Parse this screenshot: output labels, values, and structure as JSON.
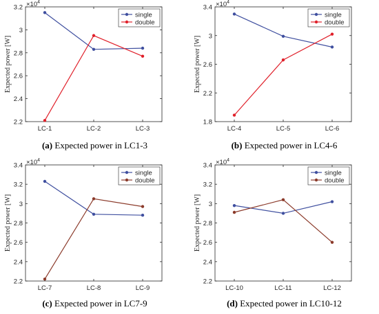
{
  "chart_data": [
    {
      "type": "line",
      "caption_letter": "(a)",
      "caption_text": "Expected power in LC1-3",
      "ylabel": "Expected power [W]",
      "exponent_base": "×10",
      "exponent_power": "4",
      "categories": [
        "LC-1",
        "LC-2",
        "LC-3"
      ],
      "ylim": [
        2.2,
        3.2
      ],
      "yticks": [
        "2.2",
        "2.4",
        "2.6",
        "2.8",
        "3",
        "3.2"
      ],
      "yticks_values": [
        2.2,
        2.4,
        2.6,
        2.8,
        3.0,
        3.2
      ],
      "legend_position": "top-right",
      "series": [
        {
          "name": "single",
          "color": "#3f4f9f",
          "values": [
            3.15,
            2.83,
            2.84
          ]
        },
        {
          "name": "double",
          "color": "#e0202a",
          "values": [
            2.21,
            2.95,
            2.77
          ]
        }
      ]
    },
    {
      "type": "line",
      "caption_letter": "(b)",
      "caption_text": "Expected power in LC4-6",
      "ylabel": "Expected power [W]",
      "exponent_base": "×10",
      "exponent_power": "4",
      "categories": [
        "LC-4",
        "LC-5",
        "LC-6"
      ],
      "ylim": [
        1.8,
        3.4
      ],
      "yticks": [
        "1.8",
        "2.2",
        "2.6",
        "3",
        "3.4"
      ],
      "yticks_values": [
        1.8,
        2.2,
        2.6,
        3.0,
        3.4
      ],
      "legend_position": "top-right",
      "series": [
        {
          "name": "single",
          "color": "#3f4f9f",
          "values": [
            3.3,
            2.99,
            2.84
          ]
        },
        {
          "name": "double",
          "color": "#e0202a",
          "values": [
            1.89,
            2.66,
            3.02
          ]
        }
      ]
    },
    {
      "type": "line",
      "caption_letter": "(c)",
      "caption_text": "Expected power in LC7-9",
      "ylabel": "Expected power [W]",
      "exponent_base": "×10",
      "exponent_power": "4",
      "categories": [
        "LC-7",
        "LC-8",
        "LC-9"
      ],
      "ylim": [
        2.2,
        3.4
      ],
      "yticks": [
        "2.2",
        "2.4",
        "2.6",
        "2.8",
        "3",
        "3.2",
        "3.4"
      ],
      "yticks_values": [
        2.2,
        2.4,
        2.6,
        2.8,
        3.0,
        3.2,
        3.4
      ],
      "legend_position": "top-right",
      "series": [
        {
          "name": "single",
          "color": "#3f4f9f",
          "values": [
            3.23,
            2.89,
            2.88
          ]
        },
        {
          "name": "double",
          "color": "#8b3a2a",
          "values": [
            2.22,
            3.05,
            2.97
          ]
        }
      ]
    },
    {
      "type": "line",
      "caption_letter": "(d)",
      "caption_text": "Expected power in LC10-12",
      "ylabel": "Expected power [W]",
      "exponent_base": "×10",
      "exponent_power": "4",
      "categories": [
        "LC-10",
        "LC-11",
        "LC-12"
      ],
      "ylim": [
        2.2,
        3.4
      ],
      "yticks": [
        "2.2",
        "2.4",
        "2.6",
        "2.8",
        "3",
        "3.2",
        "3.4"
      ],
      "yticks_values": [
        2.2,
        2.4,
        2.6,
        2.8,
        3.0,
        3.2,
        3.4
      ],
      "legend_position": "top-right",
      "series": [
        {
          "name": "single",
          "color": "#3f4f9f",
          "values": [
            2.98,
            2.9,
            3.02
          ]
        },
        {
          "name": "double",
          "color": "#8b3a2a",
          "values": [
            2.91,
            3.04,
            2.6
          ]
        }
      ]
    }
  ]
}
